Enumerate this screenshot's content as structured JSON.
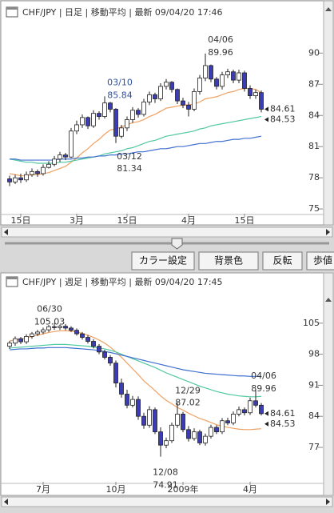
{
  "chart_data": [
    {
      "type": "candlestick",
      "title": "CHF/JPY | 日足 | 移動平均 | 最新 09/04/20 17:46",
      "categories": [
        null,
        null,
        "15日",
        null,
        null,
        null,
        null,
        null,
        null,
        null,
        null,
        null,
        "3月",
        null,
        null,
        null,
        null,
        null,
        null,
        null,
        null,
        "15日",
        null,
        null,
        null,
        null,
        null,
        null,
        null,
        null,
        null,
        null,
        "4月",
        null,
        null,
        null,
        null,
        null,
        null,
        null,
        null,
        null,
        "15日",
        null,
        null,
        null
      ],
      "open": [
        77.9,
        77.6,
        78.0,
        77.8,
        78.3,
        78.6,
        78.4,
        79.0,
        79.3,
        79.8,
        80.2,
        80.0,
        82.5,
        83.1,
        83.8,
        83.0,
        84.2,
        83.9,
        85.2,
        84.6,
        82.0,
        82.8,
        83.6,
        84.5,
        84.1,
        85.3,
        86.0,
        85.6,
        86.8,
        87.2,
        86.5,
        85.4,
        85.0,
        84.6,
        86.3,
        87.6,
        88.8,
        87.5,
        86.8,
        87.9,
        88.2,
        87.4,
        88.1,
        86.6,
        85.9,
        86.2
      ],
      "high": [
        78.2,
        78.3,
        78.4,
        78.6,
        78.9,
        78.8,
        79.3,
        79.6,
        80.1,
        80.5,
        80.4,
        82.8,
        83.5,
        84.1,
        83.9,
        84.5,
        84.4,
        85.84,
        85.3,
        84.7,
        83.1,
        83.9,
        84.8,
        84.7,
        85.6,
        86.3,
        86.2,
        87.1,
        87.5,
        87.3,
        86.6,
        85.7,
        85.3,
        86.6,
        87.9,
        89.96,
        88.9,
        87.7,
        88.2,
        88.5,
        88.4,
        88.4,
        88.3,
        86.9,
        86.5,
        86.4
      ],
      "low": [
        77.2,
        77.4,
        77.5,
        77.6,
        78.1,
        78.1,
        78.2,
        78.9,
        79.1,
        79.5,
        79.7,
        79.9,
        82.2,
        82.8,
        82.7,
        82.8,
        83.6,
        83.7,
        84.3,
        81.34,
        81.8,
        82.5,
        83.3,
        83.8,
        83.9,
        85.0,
        85.2,
        85.4,
        86.5,
        86.2,
        85.1,
        84.7,
        83.9,
        84.4,
        86.0,
        87.3,
        87.2,
        86.5,
        86.5,
        87.6,
        87.1,
        87.1,
        86.3,
        85.6,
        85.6,
        84.3
      ],
      "close": [
        77.6,
        78.0,
        77.8,
        78.3,
        78.6,
        78.4,
        79.0,
        79.3,
        79.8,
        80.2,
        80.0,
        82.5,
        83.1,
        83.8,
        83.0,
        84.2,
        83.9,
        85.2,
        84.6,
        82.0,
        82.8,
        83.6,
        84.5,
        84.1,
        85.3,
        86.0,
        85.6,
        86.8,
        87.2,
        86.5,
        85.4,
        85.0,
        84.6,
        86.3,
        87.6,
        88.8,
        87.5,
        86.8,
        87.9,
        88.2,
        87.4,
        88.1,
        86.6,
        85.9,
        86.2,
        84.6
      ],
      "up_color": "#ffffff",
      "down_color": "#3c3cb4",
      "series": [
        {
          "color": "#f0a060",
          "values": [
            78.4,
            78.3,
            78.2,
            78.2,
            78.3,
            78.3,
            78.4,
            78.5,
            78.7,
            78.9,
            79.1,
            79.5,
            79.9,
            80.4,
            80.8,
            81.3,
            81.7,
            82.2,
            82.6,
            82.7,
            82.9,
            83.1,
            83.3,
            83.4,
            83.6,
            83.9,
            84.1,
            84.4,
            84.7,
            84.8,
            84.9,
            85.0,
            85.0,
            85.1,
            85.3,
            85.6,
            85.7,
            85.8,
            86.0,
            86.2,
            86.3,
            86.5,
            86.6,
            86.6,
            86.5,
            86.2
          ]
        },
        {
          "color": "#50c8a0",
          "values": [
            79.8,
            79.7,
            79.6,
            79.5,
            79.5,
            79.4,
            79.4,
            79.4,
            79.4,
            79.5,
            79.5,
            79.6,
            79.7,
            79.8,
            79.9,
            80.0,
            80.1,
            80.3,
            80.4,
            80.5,
            80.6,
            80.8,
            80.9,
            81.1,
            81.3,
            81.5,
            81.6,
            81.8,
            82.0,
            82.1,
            82.2,
            82.3,
            82.4,
            82.5,
            82.7,
            82.8,
            83.0,
            83.1,
            83.2,
            83.3,
            83.4,
            83.5,
            83.6,
            83.7,
            83.8,
            83.9
          ]
        },
        {
          "color": "#4070d0",
          "values": [
            79.8,
            79.8,
            79.7,
            79.7,
            79.7,
            79.7,
            79.7,
            79.7,
            79.7,
            79.8,
            79.8,
            79.8,
            79.9,
            79.9,
            80.0,
            80.0,
            80.1,
            80.1,
            80.2,
            80.2,
            80.3,
            80.3,
            80.4,
            80.5,
            80.5,
            80.6,
            80.7,
            80.8,
            80.8,
            80.9,
            81.0,
            81.0,
            81.1,
            81.2,
            81.3,
            81.3,
            81.4,
            81.5,
            81.5,
            81.6,
            81.7,
            81.7,
            81.8,
            81.8,
            81.9,
            82.0
          ]
        }
      ],
      "annotations": [
        {
          "date": "04/06",
          "price": 89.96
        },
        {
          "date": "03/10",
          "price": 85.84
        },
        {
          "date": "03/12",
          "price": 81.34
        }
      ],
      "last_prices": [
        84.61,
        84.53
      ],
      "ylim": [
        74.7,
        92.8
      ],
      "yticks": [
        75,
        78,
        81,
        84,
        87,
        90
      ]
    },
    {
      "type": "candlestick",
      "title": "CHF/JPY | 週足 | 移動平均 | 最新 09/04/20 17:45",
      "categories": [
        null,
        null,
        null,
        null,
        null,
        null,
        "7月",
        null,
        null,
        null,
        null,
        null,
        null,
        null,
        null,
        null,
        null,
        null,
        null,
        "10月",
        null,
        null,
        null,
        null,
        null,
        null,
        null,
        null,
        null,
        null,
        null,
        "2009年",
        null,
        null,
        null,
        null,
        null,
        null,
        null,
        null,
        null,
        null,
        null,
        "4月",
        null,
        null
      ],
      "open": [
        99.8,
        100.5,
        101.5,
        100.8,
        102.0,
        102.6,
        103.0,
        103.5,
        104.2,
        104.0,
        104.3,
        103.9,
        103.4,
        102.6,
        101.8,
        100.9,
        99.8,
        98.5,
        97.3,
        96.0,
        91.5,
        89.0,
        86.5,
        87.8,
        84.0,
        82.0,
        85.5,
        80.5,
        77.5,
        78.5,
        82.0,
        84.5,
        81.0,
        79.0,
        80.5,
        78.0,
        79.5,
        81.5,
        80.5,
        83.0,
        82.5,
        84.5,
        85.5,
        84.8,
        87.5,
        86.5
      ],
      "high": [
        101.0,
        102.0,
        101.9,
        102.5,
        103.0,
        103.5,
        104.0,
        104.6,
        105.03,
        104.7,
        104.8,
        104.3,
        103.8,
        103.0,
        102.3,
        101.4,
        100.3,
        99.0,
        97.8,
        96.6,
        92.5,
        90.0,
        88.6,
        88.5,
        84.8,
        86.3,
        86.0,
        81.5,
        79.2,
        82.6,
        87.02,
        85.0,
        81.8,
        81.3,
        81.0,
        80.1,
        82.1,
        82.0,
        83.6,
        83.7,
        85.1,
        86.2,
        86.0,
        88.2,
        89.96,
        87.0
      ],
      "low": [
        99.2,
        99.9,
        100.3,
        100.3,
        101.5,
        102.1,
        102.5,
        103.0,
        103.5,
        103.5,
        103.4,
        103.0,
        102.2,
        101.3,
        100.4,
        99.3,
        98.0,
        96.8,
        95.4,
        90.5,
        88.2,
        85.8,
        86.0,
        83.2,
        81.2,
        81.4,
        80.0,
        74.91,
        76.8,
        78.0,
        81.4,
        80.4,
        78.3,
        78.5,
        77.5,
        77.4,
        79.0,
        80.0,
        80.0,
        82.0,
        82.0,
        84.0,
        84.2,
        84.3,
        86.0,
        84.2
      ],
      "close": [
        100.5,
        101.5,
        100.8,
        102.0,
        102.6,
        103.0,
        103.5,
        104.2,
        104.0,
        104.3,
        103.9,
        103.4,
        102.6,
        101.8,
        100.9,
        99.8,
        98.5,
        97.3,
        96.0,
        91.5,
        89.0,
        86.5,
        87.8,
        84.0,
        82.0,
        85.5,
        80.5,
        77.5,
        78.5,
        82.0,
        84.5,
        81.0,
        79.0,
        80.5,
        78.0,
        79.5,
        81.5,
        80.5,
        83.0,
        82.5,
        84.5,
        85.5,
        84.8,
        87.5,
        86.5,
        84.6
      ],
      "up_color": "#ffffff",
      "down_color": "#3c3cb4",
      "series": [
        {
          "color": "#f0a060",
          "values": [
            101.0,
            101.2,
            101.4,
            101.7,
            102.0,
            102.3,
            102.6,
            102.9,
            103.1,
            103.3,
            103.3,
            103.2,
            103.0,
            102.7,
            102.3,
            101.8,
            101.2,
            100.5,
            99.6,
            98.5,
            97.3,
            96.0,
            94.7,
            93.4,
            92.0,
            90.9,
            89.8,
            88.6,
            87.6,
            86.8,
            86.0,
            85.4,
            84.7,
            84.1,
            83.5,
            83.1,
            82.6,
            82.1,
            81.8,
            81.5,
            81.3,
            81.1,
            81.0,
            81.0,
            81.1,
            81.2
          ]
        },
        {
          "color": "#50c8a0",
          "values": [
            99.4,
            99.5,
            99.6,
            99.7,
            99.8,
            99.9,
            100.0,
            100.1,
            100.2,
            100.2,
            100.2,
            100.1,
            100.0,
            99.9,
            99.8,
            99.6,
            99.4,
            99.2,
            98.9,
            98.5,
            98.0,
            97.5,
            97.0,
            96.5,
            96.0,
            95.5,
            95.0,
            94.4,
            93.8,
            93.3,
            92.8,
            92.3,
            91.8,
            91.3,
            90.8,
            90.4,
            90.0,
            89.6,
            89.3,
            89.0,
            88.8,
            88.6,
            88.5,
            88.4,
            88.4,
            88.5
          ]
        },
        {
          "color": "#4070d0",
          "values": [
            99.0,
            99.1,
            99.2,
            99.2,
            99.3,
            99.4,
            99.4,
            99.5,
            99.5,
            99.5,
            99.5,
            99.4,
            99.3,
            99.2,
            99.1,
            99.0,
            98.8,
            98.6,
            98.4,
            98.1,
            97.8,
            97.5,
            97.2,
            96.9,
            96.6,
            96.3,
            96.0,
            95.7,
            95.4,
            95.1,
            94.8,
            94.5,
            94.3,
            94.1,
            93.9,
            93.7,
            93.6,
            93.5,
            93.4,
            93.3,
            93.2,
            93.1,
            93.1,
            93.0,
            93.0,
            93.0
          ]
        }
      ],
      "annotations": [
        {
          "date": "06/30",
          "price": 105.03
        },
        {
          "date": "12/29",
          "price": 87.02
        },
        {
          "date": "12/08",
          "price": 74.91
        },
        {
          "date": "04/06",
          "price": 89.96
        }
      ],
      "last_prices": [
        84.61,
        84.53
      ],
      "ylim": [
        69.6,
        111.1
      ],
      "yticks": [
        77,
        84,
        91,
        98,
        105
      ]
    }
  ],
  "toolbar": {
    "buttons": [
      "カラー設定",
      "背景色",
      "反転",
      "歩値"
    ]
  }
}
